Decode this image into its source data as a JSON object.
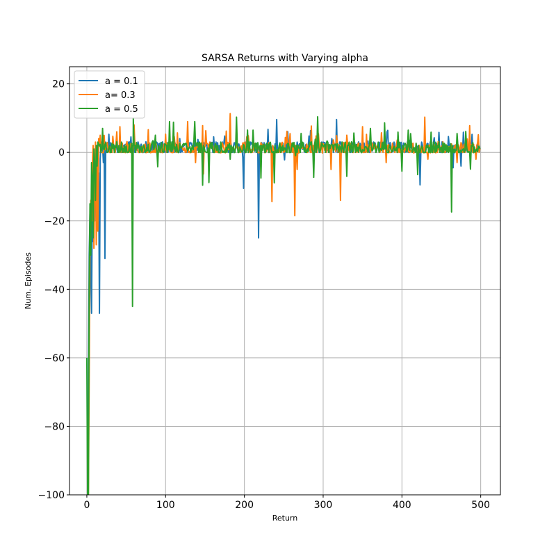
{
  "chart_data": {
    "type": "line",
    "title": "SARSA Returns with Varying alpha",
    "xlabel": "Return",
    "ylabel": "Num. Episodes",
    "xlim": [
      -22,
      525
    ],
    "ylim": [
      -100,
      25
    ],
    "xticks": [
      0,
      100,
      200,
      300,
      400,
      500
    ],
    "yticks": [
      -100,
      -80,
      -60,
      -40,
      -20,
      0,
      20
    ],
    "xtick_labels": [
      "0",
      "100",
      "200",
      "300",
      "400",
      "500"
    ],
    "ytick_labels": [
      "−100",
      "−80",
      "−60",
      "−40",
      "−20",
      "0",
      "20"
    ],
    "grid": true,
    "legend_position": "top-left",
    "n_points": 500,
    "series": [
      {
        "name": "a = 0.1",
        "color": "#1f77b4",
        "base": 1.6,
        "noise": 1.5,
        "seed": 11,
        "points": [
          [
            0,
            -100
          ],
          [
            1,
            -100
          ],
          [
            2,
            -70
          ],
          [
            3,
            -30
          ],
          [
            4,
            -18
          ],
          [
            5,
            -35
          ],
          [
            6,
            -47
          ],
          [
            7,
            -12
          ],
          [
            8,
            -26
          ],
          [
            9,
            -8
          ],
          [
            10,
            -20
          ],
          [
            11,
            -5
          ],
          [
            12,
            -15
          ],
          [
            13,
            -3
          ],
          [
            14,
            -23
          ],
          [
            15,
            -6
          ],
          [
            16,
            -47
          ],
          [
            17,
            -2
          ],
          [
            18,
            3
          ],
          [
            19,
            1
          ],
          [
            20,
            2
          ],
          [
            21,
            -3
          ],
          [
            22,
            2
          ],
          [
            23,
            -31
          ],
          [
            24,
            3
          ],
          [
            56,
            4.5
          ],
          [
            57,
            0
          ],
          [
            58,
            2
          ],
          [
            118,
            4
          ],
          [
            119,
            0
          ],
          [
            198,
            -1.5
          ],
          [
            199,
            -10.5
          ],
          [
            200,
            2
          ],
          [
            218,
            -25
          ],
          [
            219,
            0
          ],
          [
            220,
            2
          ],
          [
            230,
            6.7
          ],
          [
            231,
            0
          ],
          [
            241,
            9.6
          ],
          [
            242,
            0
          ],
          [
            251,
            -2.2
          ],
          [
            252,
            2
          ],
          [
            270,
            2.5
          ],
          [
            300,
            3
          ],
          [
            317,
            9.6
          ],
          [
            318,
            0
          ],
          [
            375,
            2.5
          ],
          [
            390,
            3
          ],
          [
            410,
            3.5
          ],
          [
            423,
            -9.5
          ],
          [
            424,
            0
          ],
          [
            425,
            3
          ],
          [
            465,
            -4.5
          ],
          [
            466,
            2
          ],
          [
            475,
            -4
          ],
          [
            476,
            2
          ],
          [
            482,
            3
          ]
        ]
      },
      {
        "name": "a= 0.3",
        "color": "#ff7f0e",
        "base": 1.4,
        "noise": 1.6,
        "seed": 23,
        "points": [
          [
            0,
            -100
          ],
          [
            1,
            -100
          ],
          [
            2,
            -100
          ],
          [
            3,
            -65
          ],
          [
            4,
            -25
          ],
          [
            5,
            -14
          ],
          [
            6,
            -20
          ],
          [
            7,
            -4
          ],
          [
            8,
            2
          ],
          [
            9,
            -28
          ],
          [
            10,
            -10
          ],
          [
            11,
            3
          ],
          [
            12,
            -27
          ],
          [
            13,
            2
          ],
          [
            14,
            -23
          ],
          [
            15,
            4
          ],
          [
            16,
            2
          ],
          [
            17,
            5
          ],
          [
            42,
            7.5
          ],
          [
            43,
            0
          ],
          [
            60,
            8
          ],
          [
            61,
            2
          ],
          [
            78,
            6.6
          ],
          [
            79,
            0
          ],
          [
            100,
            5.3
          ],
          [
            101,
            0
          ],
          [
            115,
            5.7
          ],
          [
            116,
            0
          ],
          [
            128,
            9
          ],
          [
            129,
            0
          ],
          [
            138,
            -3
          ],
          [
            139,
            2
          ],
          [
            147,
            7.8
          ],
          [
            148,
            -6.3
          ],
          [
            149,
            2
          ],
          [
            182,
            11.3
          ],
          [
            183,
            1
          ],
          [
            235,
            -14.4
          ],
          [
            236,
            2
          ],
          [
            264,
            -18.5
          ],
          [
            265,
            2
          ],
          [
            267,
            -5
          ],
          [
            268,
            2
          ],
          [
            285,
            7.7
          ],
          [
            286,
            0
          ],
          [
            310,
            -5
          ],
          [
            311,
            2
          ],
          [
            322,
            -14
          ],
          [
            323,
            2
          ],
          [
            330,
            5
          ],
          [
            350,
            7.5
          ],
          [
            351,
            0
          ],
          [
            380,
            -3
          ],
          [
            381,
            2
          ],
          [
            429,
            10.3
          ],
          [
            430,
            0
          ],
          [
            433,
            -2
          ],
          [
            434,
            2
          ],
          [
            470,
            -3
          ],
          [
            471,
            2
          ],
          [
            486,
            7.8
          ],
          [
            487,
            0
          ],
          [
            494,
            -2
          ],
          [
            495,
            2
          ],
          [
            499,
            1
          ]
        ]
      },
      {
        "name": "a = 0.5",
        "color": "#2ca02c",
        "base": 1.5,
        "noise": 1.6,
        "seed": 37,
        "points": [
          [
            0,
            -60
          ],
          [
            1,
            -100
          ],
          [
            2,
            -100
          ],
          [
            3,
            -40
          ],
          [
            4,
            -15
          ],
          [
            5,
            -30
          ],
          [
            6,
            -3
          ],
          [
            7,
            -7
          ],
          [
            8,
            -25
          ],
          [
            9,
            1
          ],
          [
            10,
            -3
          ],
          [
            11,
            -14
          ],
          [
            12,
            2
          ],
          [
            13,
            -4
          ],
          [
            14,
            3
          ],
          [
            20,
            7
          ],
          [
            21,
            1
          ],
          [
            58,
            -45
          ],
          [
            59,
            10
          ],
          [
            60,
            2
          ],
          [
            90,
            -4.2
          ],
          [
            91,
            2
          ],
          [
            105,
            9
          ],
          [
            106,
            1
          ],
          [
            110,
            8.8
          ],
          [
            111,
            1
          ],
          [
            137,
            9
          ],
          [
            138,
            2
          ],
          [
            147,
            -9.6
          ],
          [
            148,
            2
          ],
          [
            155,
            -8.8
          ],
          [
            156,
            2
          ],
          [
            170,
            3
          ],
          [
            182,
            -2
          ],
          [
            183,
            2
          ],
          [
            190,
            10.3
          ],
          [
            191,
            2
          ],
          [
            204,
            6.5
          ],
          [
            205,
            0
          ],
          [
            221,
            -7.5
          ],
          [
            222,
            2
          ],
          [
            238,
            -8.9
          ],
          [
            239,
            2
          ],
          [
            265,
            -1
          ],
          [
            266,
            2
          ],
          [
            288,
            -7.3
          ],
          [
            289,
            2
          ],
          [
            293,
            10.4
          ],
          [
            294,
            2
          ],
          [
            330,
            -7
          ],
          [
            331,
            2
          ],
          [
            360,
            7
          ],
          [
            361,
            2
          ],
          [
            370,
            3
          ],
          [
            378,
            8.6
          ],
          [
            379,
            1
          ],
          [
            400,
            -5.5
          ],
          [
            401,
            2
          ],
          [
            420,
            -6.5
          ],
          [
            421,
            2
          ],
          [
            440,
            3
          ],
          [
            463,
            -17.4
          ],
          [
            464,
            2
          ],
          [
            470,
            5.5
          ],
          [
            471,
            2
          ],
          [
            481,
            6.1
          ],
          [
            482,
            2
          ],
          [
            487,
            -4.9
          ],
          [
            488,
            2
          ],
          [
            499,
            1
          ]
        ]
      }
    ]
  }
}
